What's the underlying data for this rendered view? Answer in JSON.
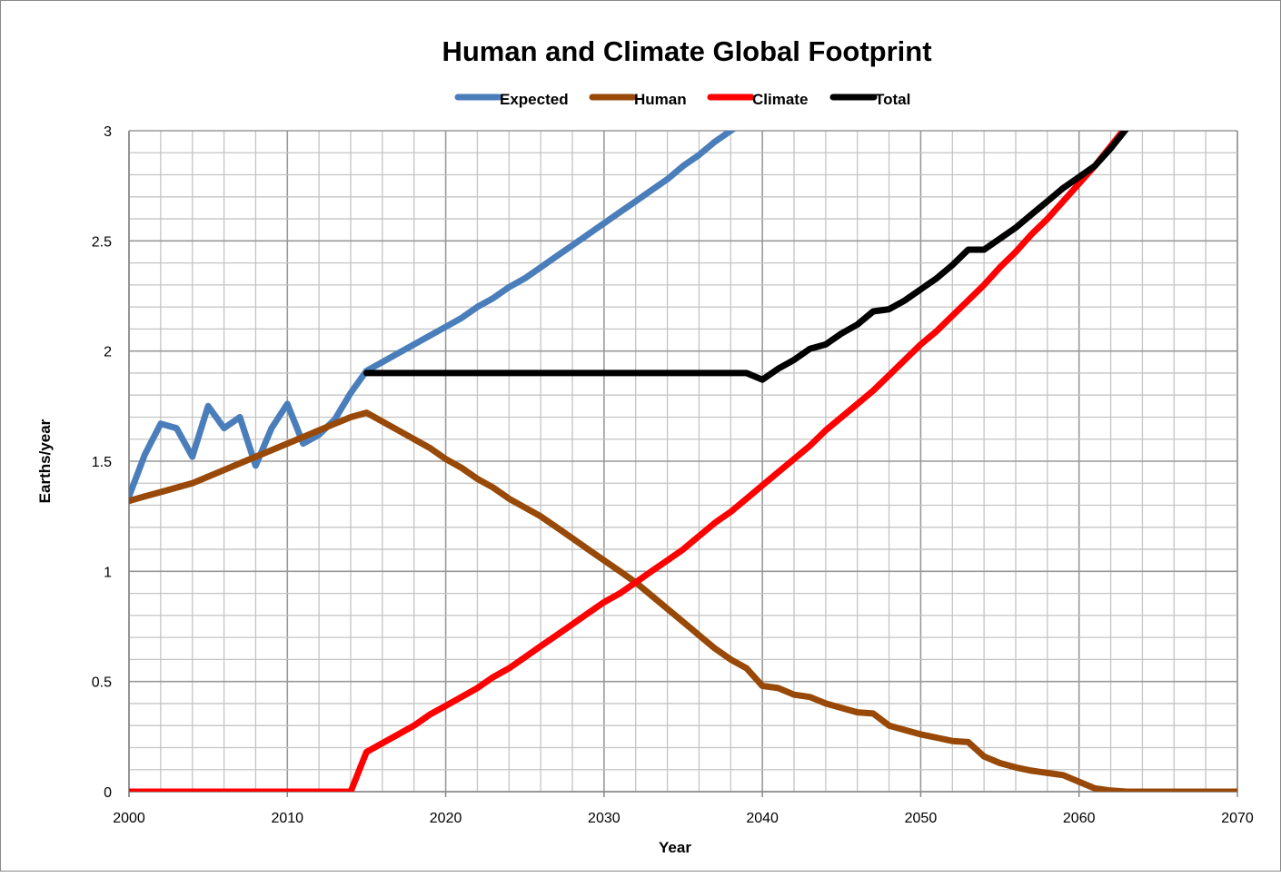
{
  "chart_data": {
    "type": "line",
    "title": "Human and Climate Global Footprint",
    "xlabel": "Year",
    "ylabel": "Earths/year",
    "xlim": [
      2000,
      2070
    ],
    "ylim": [
      0,
      3
    ],
    "xticks": [
      "2000",
      "2010",
      "2020",
      "2030",
      "2040",
      "2050",
      "2060",
      "2070"
    ],
    "yticks": [
      "0",
      "0.5",
      "1",
      "1.5",
      "2",
      "2.5",
      "3"
    ],
    "grid": true,
    "legend_position": "top",
    "series": [
      {
        "name": "Expected",
        "color": "#4a7ebb",
        "x": [
          2000,
          2001,
          2002,
          2003,
          2004,
          2005,
          2006,
          2007,
          2008,
          2009,
          2010,
          2011,
          2012,
          2013,
          2014,
          2015,
          2016,
          2017,
          2018,
          2019,
          2020,
          2021,
          2022,
          2023,
          2024,
          2025,
          2026,
          2027,
          2028,
          2029,
          2030,
          2031,
          2032,
          2033,
          2034,
          2035,
          2036,
          2037,
          2038,
          2039
        ],
        "y": [
          1.34,
          1.53,
          1.67,
          1.65,
          1.52,
          1.75,
          1.65,
          1.7,
          1.48,
          1.65,
          1.76,
          1.58,
          1.62,
          1.69,
          1.81,
          1.91,
          1.95,
          1.99,
          2.03,
          2.07,
          2.11,
          2.15,
          2.2,
          2.24,
          2.29,
          2.33,
          2.38,
          2.43,
          2.48,
          2.53,
          2.58,
          2.63,
          2.68,
          2.73,
          2.78,
          2.84,
          2.89,
          2.95,
          3.0,
          3.05
        ]
      },
      {
        "name": "Human",
        "color": "#984807",
        "x": [
          2000,
          2001,
          2002,
          2003,
          2004,
          2005,
          2006,
          2007,
          2008,
          2009,
          2010,
          2011,
          2012,
          2013,
          2014,
          2015,
          2016,
          2017,
          2018,
          2019,
          2020,
          2021,
          2022,
          2023,
          2024,
          2025,
          2026,
          2027,
          2028,
          2029,
          2030,
          2031,
          2032,
          2033,
          2034,
          2035,
          2036,
          2037,
          2038,
          2039,
          2040,
          2041,
          2042,
          2043,
          2044,
          2045,
          2046,
          2047,
          2048,
          2049,
          2050,
          2051,
          2052,
          2053,
          2054,
          2055,
          2056,
          2057,
          2058,
          2059,
          2060,
          2061,
          2062,
          2063,
          2064,
          2065,
          2066,
          2067,
          2068,
          2069,
          2070
        ],
        "y": [
          1.32,
          1.34,
          1.36,
          1.38,
          1.4,
          1.43,
          1.46,
          1.49,
          1.52,
          1.55,
          1.58,
          1.61,
          1.64,
          1.67,
          1.7,
          1.72,
          1.68,
          1.64,
          1.6,
          1.56,
          1.51,
          1.47,
          1.42,
          1.38,
          1.33,
          1.29,
          1.25,
          1.2,
          1.15,
          1.1,
          1.05,
          1.0,
          0.95,
          0.89,
          0.83,
          0.77,
          0.71,
          0.65,
          0.6,
          0.56,
          0.48,
          0.47,
          0.44,
          0.43,
          0.4,
          0.38,
          0.36,
          0.355,
          0.3,
          0.28,
          0.26,
          0.245,
          0.23,
          0.225,
          0.16,
          0.13,
          0.11,
          0.095,
          0.085,
          0.075,
          0.045,
          0.015,
          0.005,
          0,
          0,
          0,
          0,
          0,
          0,
          0,
          0
        ]
      },
      {
        "name": "Climate",
        "color": "#ff0000",
        "x": [
          2000,
          2014,
          2015,
          2016,
          2017,
          2018,
          2019,
          2020,
          2021,
          2022,
          2023,
          2024,
          2025,
          2026,
          2027,
          2028,
          2029,
          2030,
          2031,
          2032,
          2033,
          2034,
          2035,
          2036,
          2037,
          2038,
          2039,
          2040,
          2041,
          2042,
          2043,
          2044,
          2045,
          2046,
          2047,
          2048,
          2049,
          2050,
          2051,
          2052,
          2053,
          2054,
          2055,
          2056,
          2057,
          2058,
          2059,
          2060,
          2061,
          2062,
          2063
        ],
        "y": [
          0,
          0,
          0.18,
          0.22,
          0.26,
          0.3,
          0.35,
          0.39,
          0.43,
          0.47,
          0.52,
          0.56,
          0.61,
          0.66,
          0.71,
          0.76,
          0.81,
          0.86,
          0.9,
          0.95,
          1.0,
          1.05,
          1.1,
          1.16,
          1.22,
          1.27,
          1.33,
          1.39,
          1.45,
          1.51,
          1.57,
          1.64,
          1.7,
          1.76,
          1.82,
          1.89,
          1.96,
          2.03,
          2.09,
          2.16,
          2.23,
          2.3,
          2.38,
          2.45,
          2.53,
          2.6,
          2.68,
          2.76,
          2.84,
          2.93,
          3.02
        ]
      },
      {
        "name": "Total",
        "color": "#000000",
        "x": [
          2015,
          2039,
          2040,
          2041,
          2042,
          2043,
          2044,
          2045,
          2046,
          2047,
          2048,
          2049,
          2050,
          2051,
          2052,
          2053,
          2054,
          2055,
          2056,
          2057,
          2058,
          2059,
          2060,
          2061,
          2062,
          2063
        ],
        "y": [
          1.9,
          1.9,
          1.87,
          1.92,
          1.96,
          2.01,
          2.03,
          2.08,
          2.12,
          2.18,
          2.19,
          2.23,
          2.28,
          2.33,
          2.39,
          2.46,
          2.46,
          2.51,
          2.56,
          2.62,
          2.68,
          2.74,
          2.79,
          2.84,
          2.92,
          3.01
        ]
      }
    ]
  }
}
